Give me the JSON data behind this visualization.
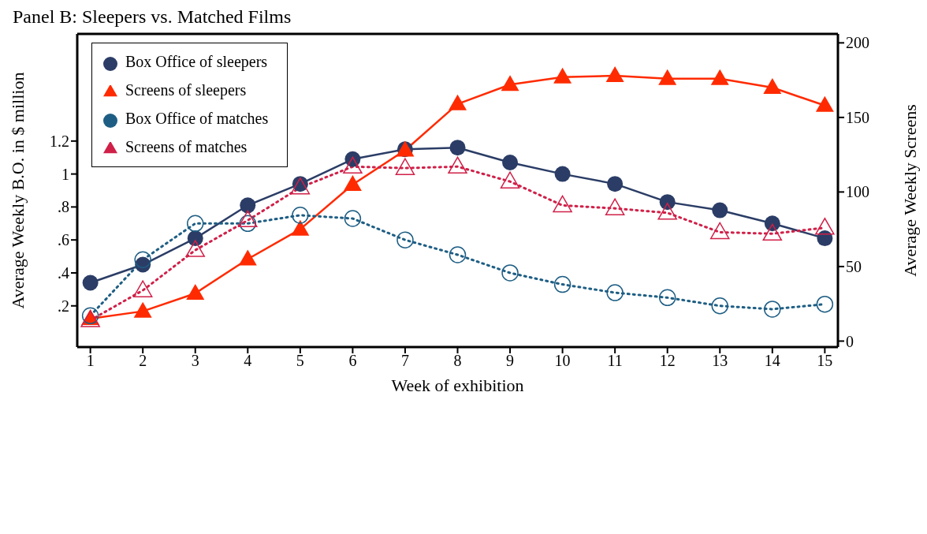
{
  "chart_data": {
    "type": "line",
    "title": "Panel B: Sleepers vs. Matched Films",
    "xlabel": "Week of exhibition",
    "ylabel": "Average Weekly B.O. in $ million",
    "y2label": "Average Weekly Screens",
    "x": [
      1,
      2,
      3,
      4,
      5,
      6,
      7,
      8,
      9,
      10,
      11,
      12,
      13,
      14,
      15
    ],
    "xlim": [
      0.75,
      15.25
    ],
    "xticks": [
      1,
      2,
      3,
      4,
      5,
      6,
      7,
      8,
      9,
      10,
      11,
      12,
      13,
      14,
      15
    ],
    "ylim": [
      -0.05,
      1.85
    ],
    "yticks": [
      {
        "value": 0.2,
        "label": ".2"
      },
      {
        "value": 0.4,
        "label": ".4"
      },
      {
        "value": 0.6,
        "label": ".6"
      },
      {
        "value": 0.8,
        "label": ".8"
      },
      1,
      1.2
    ],
    "y2lim": [
      -4,
      206
    ],
    "y2ticks": [
      0,
      50,
      100,
      150,
      200
    ],
    "grid": false,
    "legend": "top left",
    "series": [
      {
        "name": "Box Office of sleepers",
        "color": "#2b3d66",
        "marker": "circle",
        "line_style": "solid",
        "values": [
          0.34,
          0.45,
          0.61,
          0.81,
          0.94,
          1.09,
          1.15,
          1.16,
          1.07,
          1.0,
          0.94,
          0.83,
          0.78,
          0.7,
          0.61
        ]
      },
      {
        "name": "Box Office of matches",
        "color": "#1e5e84",
        "marker": "circle",
        "line_style": "dotted",
        "values": [
          0.14,
          0.48,
          0.7,
          0.7,
          0.75,
          0.73,
          0.6,
          0.51,
          0.4,
          0.33,
          0.28,
          0.25,
          0.2,
          0.18,
          0.21
        ]
      },
      {
        "name": "Screens of sleepers",
        "color": "#ff2a00",
        "marker": "triangle",
        "line_style": "solid",
        "axis": "y2",
        "values": [
          15,
          20,
          32,
          55,
          75,
          105,
          128,
          159,
          172,
          177,
          178,
          176,
          176,
          170,
          158
        ]
      },
      {
        "name": "Screens of matches",
        "color": "#d02048",
        "marker": "triangle",
        "line_style": "dotted",
        "axis": "y2",
        "values": [
          14,
          34,
          61,
          81,
          103,
          117,
          116,
          117,
          107,
          91,
          89,
          86,
          73,
          72,
          76
        ]
      }
    ]
  }
}
